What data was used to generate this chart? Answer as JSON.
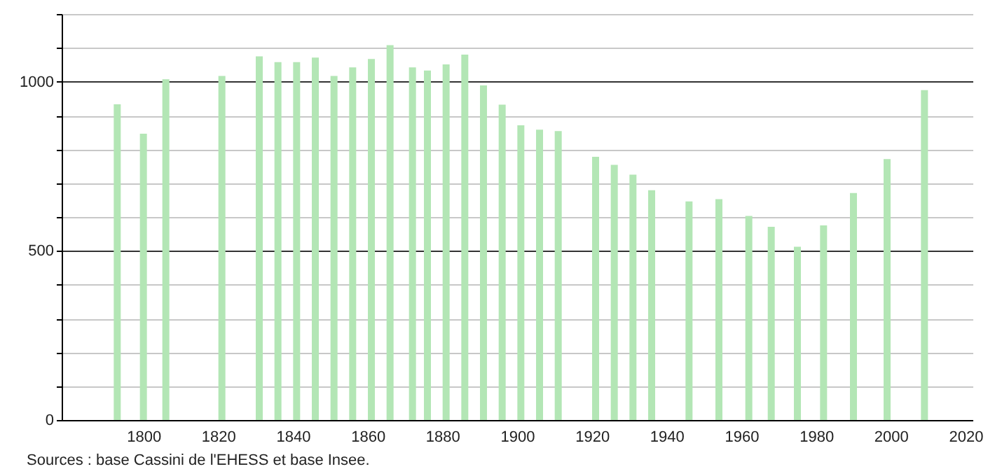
{
  "chart_data": {
    "type": "bar",
    "color": "#b3e6b5",
    "x": [
      1793,
      1800,
      1806,
      1821,
      1831,
      1836,
      1841,
      1846,
      1851,
      1856,
      1861,
      1866,
      1872,
      1876,
      1881,
      1886,
      1891,
      1896,
      1901,
      1906,
      1911,
      1921,
      1926,
      1931,
      1936,
      1946,
      1954,
      1962,
      1968,
      1975,
      1982,
      1990,
      1999,
      2009
    ],
    "values": [
      933,
      846,
      1007,
      1017,
      1075,
      1058,
      1058,
      1071,
      1017,
      1042,
      1067,
      1108,
      1042,
      1033,
      1051,
      1080,
      989,
      932,
      871,
      858,
      854,
      778,
      754,
      725,
      679,
      646,
      653,
      603,
      571,
      512,
      575,
      671,
      771,
      975
    ],
    "xlim": [
      1780,
      2020
    ],
    "xticks": [
      1800,
      1820,
      1840,
      1860,
      1880,
      1900,
      1920,
      1940,
      1960,
      1980,
      2000,
      2020
    ],
    "ylim": [
      0,
      1200
    ],
    "yticks": [
      0,
      {
        "value": 100,
        "label": null
      },
      {
        "value": 200,
        "label": null
      },
      {
        "value": 300,
        "label": null
      },
      {
        "value": 400,
        "label": null
      },
      500,
      {
        "value": 600,
        "label": null
      },
      {
        "value": 700,
        "label": null
      },
      {
        "value": 800,
        "label": null
      },
      {
        "value": 900,
        "label": null
      },
      1000,
      {
        "value": 1100,
        "label": null
      },
      {
        "value": 1200,
        "label": null
      }
    ],
    "grid": "y",
    "annotations": [
      "Sources : base Cassini de l'EHESS et base Insee."
    ]
  }
}
